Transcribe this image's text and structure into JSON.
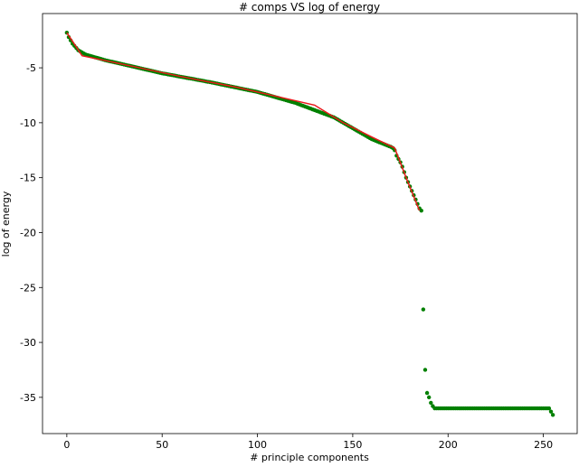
{
  "chart_data": {
    "type": "scatter",
    "title": "# comps VS log of energy",
    "x_label": "# principle components",
    "y_label": "log of energy",
    "xlim": [
      -12.75,
      267.75
    ],
    "ylim": [
      -38.3,
      -0.06
    ],
    "xticks": [
      0,
      50,
      100,
      150,
      200,
      250
    ],
    "yticks": [
      -5,
      -10,
      -15,
      -20,
      -25,
      -30,
      -35
    ],
    "series": [
      {
        "color": "#008000",
        "mode": "markers",
        "x": [
          0,
          1,
          2,
          3,
          4,
          5,
          6,
          7,
          8,
          9,
          10,
          11,
          12,
          13,
          14,
          15,
          16,
          17,
          18,
          19,
          20,
          21,
          22,
          23,
          24,
          25,
          26,
          27,
          28,
          29,
          30,
          31,
          32,
          33,
          34,
          35,
          36,
          37,
          38,
          39,
          40,
          41,
          42,
          43,
          44,
          45,
          46,
          47,
          48,
          49,
          50,
          51,
          52,
          53,
          54,
          55,
          56,
          57,
          58,
          59,
          60,
          61,
          62,
          63,
          64,
          65,
          66,
          67,
          68,
          69,
          70,
          71,
          72,
          73,
          74,
          75,
          76,
          77,
          78,
          79,
          80,
          81,
          82,
          83,
          84,
          85,
          86,
          87,
          88,
          89,
          90,
          91,
          92,
          93,
          94,
          95,
          96,
          97,
          98,
          99,
          100,
          101,
          102,
          103,
          104,
          105,
          106,
          107,
          108,
          109,
          110,
          111,
          112,
          113,
          114,
          115,
          116,
          117,
          118,
          119,
          120,
          121,
          122,
          123,
          124,
          125,
          126,
          127,
          128,
          129,
          130,
          131,
          132,
          133,
          134,
          135,
          136,
          137,
          138,
          139,
          140,
          141,
          142,
          143,
          144,
          145,
          146,
          147,
          148,
          149,
          150,
          151,
          152,
          153,
          154,
          155,
          156,
          157,
          158,
          159,
          160,
          161,
          162,
          163,
          164,
          165,
          166,
          167,
          168,
          169,
          170,
          171,
          172,
          173,
          174,
          175,
          176,
          177,
          178,
          179,
          180,
          181,
          182,
          183,
          184,
          185,
          186,
          187,
          188,
          189,
          190,
          191,
          192,
          193,
          194,
          195,
          196,
          197,
          198,
          199,
          200,
          201,
          202,
          203,
          204,
          205,
          206,
          207,
          208,
          209,
          210,
          211,
          212,
          213,
          214,
          215,
          216,
          217,
          218,
          219,
          220,
          221,
          222,
          223,
          224,
          225,
          226,
          227,
          228,
          229,
          230,
          231,
          232,
          233,
          234,
          235,
          236,
          237,
          238,
          239,
          240,
          241,
          242,
          243,
          244,
          245,
          246,
          247,
          248,
          249,
          250,
          251,
          252,
          253,
          254,
          255
        ],
        "values": [
          -1.8,
          -2.2,
          -2.5,
          -2.8,
          -3.0,
          -3.2,
          -3.4,
          -3.5,
          -3.6,
          -3.7,
          -3.8,
          -3.85,
          -3.9,
          -3.95,
          -4.0,
          -4.05,
          -4.1,
          -4.15,
          -4.2,
          -4.25,
          -4.3,
          -4.34,
          -4.38,
          -4.42,
          -4.46,
          -4.5,
          -4.54,
          -4.58,
          -4.62,
          -4.66,
          -4.7,
          -4.74,
          -4.78,
          -4.82,
          -4.86,
          -4.9,
          -4.94,
          -4.98,
          -5.02,
          -5.06,
          -5.1,
          -5.14,
          -5.18,
          -5.22,
          -5.26,
          -5.3,
          -5.34,
          -5.38,
          -5.42,
          -5.46,
          -5.5,
          -5.53,
          -5.56,
          -5.6,
          -5.63,
          -5.66,
          -5.69,
          -5.72,
          -5.76,
          -5.79,
          -5.82,
          -5.85,
          -5.88,
          -5.92,
          -5.95,
          -5.98,
          -6.01,
          -6.04,
          -6.08,
          -6.11,
          -6.14,
          -6.17,
          -6.2,
          -6.24,
          -6.27,
          -6.3,
          -6.34,
          -6.37,
          -6.41,
          -6.44,
          -6.48,
          -6.52,
          -6.55,
          -6.59,
          -6.62,
          -6.66,
          -6.7,
          -6.73,
          -6.77,
          -6.8,
          -6.84,
          -6.88,
          -6.91,
          -6.95,
          -6.98,
          -7.02,
          -7.06,
          -7.09,
          -7.13,
          -7.16,
          -7.2,
          -7.25,
          -7.3,
          -7.35,
          -7.4,
          -7.45,
          -7.5,
          -7.55,
          -7.6,
          -7.65,
          -7.7,
          -7.75,
          -7.8,
          -7.85,
          -7.9,
          -7.95,
          -8.0,
          -8.05,
          -8.1,
          -8.15,
          -8.2,
          -8.27,
          -8.33,
          -8.4,
          -8.46,
          -8.53,
          -8.59,
          -8.66,
          -8.72,
          -8.79,
          -8.85,
          -8.92,
          -8.98,
          -9.05,
          -9.11,
          -9.18,
          -9.24,
          -9.31,
          -9.37,
          -9.44,
          -9.5,
          -9.6,
          -9.7,
          -9.8,
          -9.9,
          -10.0,
          -10.1,
          -10.2,
          -10.3,
          -10.4,
          -10.5,
          -10.6,
          -10.7,
          -10.8,
          -10.9,
          -11.0,
          -11.1,
          -11.2,
          -11.3,
          -11.4,
          -11.5,
          -11.57,
          -11.64,
          -11.71,
          -11.78,
          -11.85,
          -11.92,
          -11.99,
          -12.06,
          -12.13,
          -12.2,
          -12.3,
          -12.5,
          -13.0,
          -13.3,
          -13.6,
          -14.0,
          -14.5,
          -15.0,
          -15.4,
          -15.8,
          -16.2,
          -16.6,
          -17.0,
          -17.4,
          -17.8,
          -18.0,
          -27.0,
          -32.5,
          -34.6,
          -35.0,
          -35.5,
          -35.8,
          -36.0,
          -36.0,
          -36.0,
          -36.0,
          -36.0,
          -36.0,
          -36.0,
          -36.0,
          -36.0,
          -36.0,
          -36.0,
          -36.0,
          -36.0,
          -36.0,
          -36.0,
          -36.0,
          -36.0,
          -36.0,
          -36.0,
          -36.0,
          -36.0,
          -36.0,
          -36.0,
          -36.0,
          -36.0,
          -36.0,
          -36.0,
          -36.0,
          -36.0,
          -36.0,
          -36.0,
          -36.0,
          -36.0,
          -36.0,
          -36.0,
          -36.0,
          -36.0,
          -36.0,
          -36.0,
          -36.0,
          -36.0,
          -36.0,
          -36.0,
          -36.0,
          -36.0,
          -36.0,
          -36.0,
          -36.0,
          -36.0,
          -36.0,
          -36.0,
          -36.0,
          -36.0,
          -36.0,
          -36.0,
          -36.0,
          -36.0,
          -36.0,
          -36.0,
          -36.0,
          -36.0,
          -36.3,
          -36.6
        ]
      },
      {
        "color": "#e8191b",
        "mode": "line",
        "x": [
          0,
          8,
          30,
          60,
          90,
          110,
          130,
          145,
          160,
          172,
          178,
          185
        ],
        "values": [
          -1.8,
          -3.9,
          -4.7,
          -5.8,
          -6.8,
          -7.6,
          -8.4,
          -10.0,
          -11.3,
          -12.3,
          -15.0,
          -18.0
        ]
      }
    ]
  }
}
